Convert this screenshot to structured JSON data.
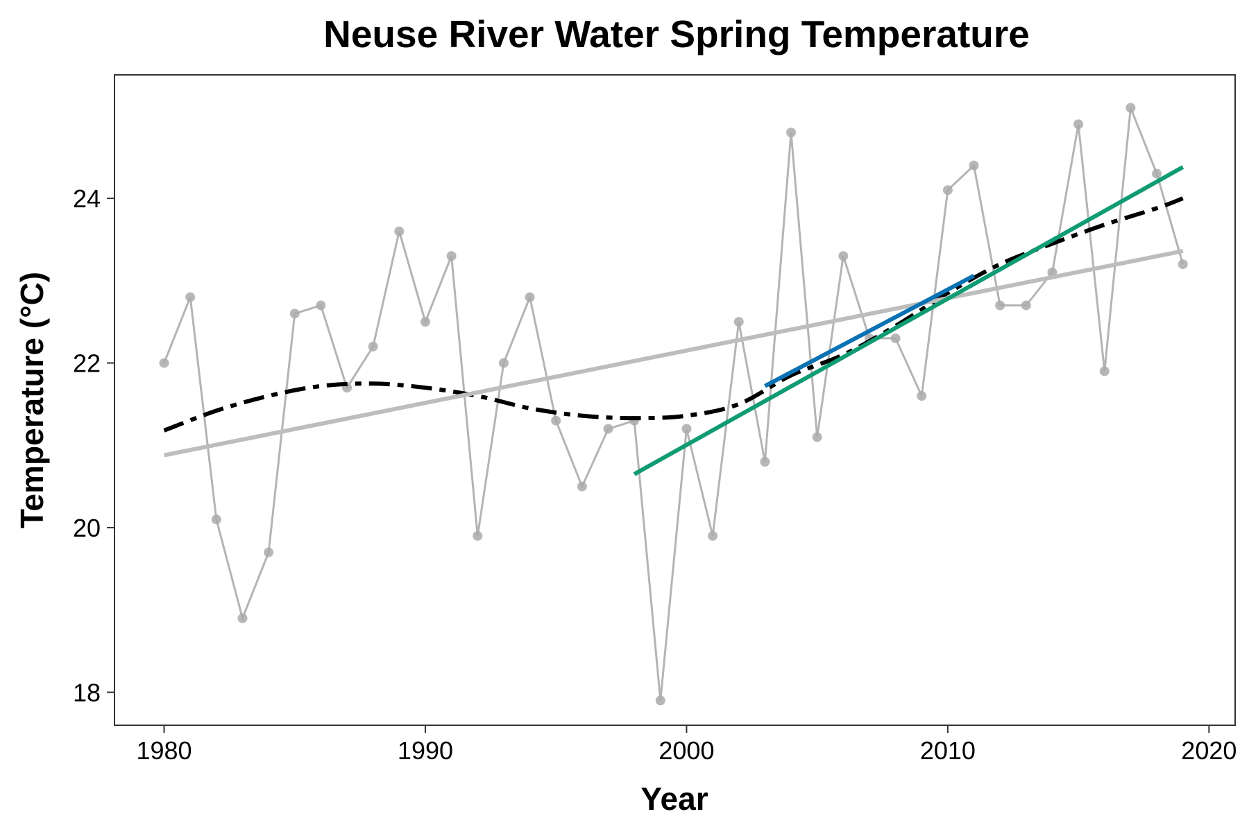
{
  "chart_data": {
    "type": "line",
    "title": "Neuse River Water Spring Temperature",
    "xlabel": "Year",
    "ylabel": "Temperature (°C)",
    "xlim": [
      1978.1,
      2021.0
    ],
    "ylim": [
      17.6,
      25.5
    ],
    "x_ticks": [
      1980,
      1990,
      2000,
      2010,
      2020
    ],
    "y_ticks": [
      18,
      20,
      22,
      24
    ],
    "grid": false,
    "legend": "none",
    "series": [
      {
        "style": "observed",
        "color": "#aaaaaa",
        "points": [
          {
            "x": 1980,
            "y": 22.0
          },
          {
            "x": 1981,
            "y": 22.8
          },
          {
            "x": 1982,
            "y": 20.1
          },
          {
            "x": 1983,
            "y": 18.9
          },
          {
            "x": 1984,
            "y": 19.7
          },
          {
            "x": 1985,
            "y": 22.6
          },
          {
            "x": 1986,
            "y": 22.7
          },
          {
            "x": 1987,
            "y": 21.7
          },
          {
            "x": 1988,
            "y": 22.2
          },
          {
            "x": 1989,
            "y": 23.6
          },
          {
            "x": 1990,
            "y": 22.5
          },
          {
            "x": 1991,
            "y": 23.3
          },
          {
            "x": 1992,
            "y": 19.9
          },
          {
            "x": 1993,
            "y": 22.0
          },
          {
            "x": 1994,
            "y": 22.8
          },
          {
            "x": 1995,
            "y": 21.3
          },
          {
            "x": 1996,
            "y": 20.5
          },
          {
            "x": 1997,
            "y": 21.2
          },
          {
            "x": 1998,
            "y": 21.3
          },
          {
            "x": 1999,
            "y": 17.9
          },
          {
            "x": 2000,
            "y": 21.2
          },
          {
            "x": 2001,
            "y": 19.9
          },
          {
            "x": 2002,
            "y": 22.5
          },
          {
            "x": 2003,
            "y": 20.8
          },
          {
            "x": 2004,
            "y": 24.8
          },
          {
            "x": 2005,
            "y": 21.1
          },
          {
            "x": 2006,
            "y": 23.3
          },
          {
            "x": 2007,
            "y": 22.3
          },
          {
            "x": 2008,
            "y": 22.3
          },
          {
            "x": 2009,
            "y": 21.6
          },
          {
            "x": 2010,
            "y": 24.1
          },
          {
            "x": 2011,
            "y": 24.4
          },
          {
            "x": 2012,
            "y": 22.7
          },
          {
            "x": 2013,
            "y": 22.7
          },
          {
            "x": 2014,
            "y": 23.1
          },
          {
            "x": 2015,
            "y": 24.9
          },
          {
            "x": 2016,
            "y": 21.9
          },
          {
            "x": 2017,
            "y": 25.1
          },
          {
            "x": 2018,
            "y": 24.3
          },
          {
            "x": 2019,
            "y": 23.2
          }
        ]
      },
      {
        "style": "smooth-dashdot",
        "color": "#000000",
        "points": [
          {
            "x": 1980,
            "y": 21.18
          },
          {
            "x": 1982,
            "y": 21.42
          },
          {
            "x": 1984,
            "y": 21.6
          },
          {
            "x": 1986,
            "y": 21.72
          },
          {
            "x": 1988,
            "y": 21.75
          },
          {
            "x": 1990,
            "y": 21.7
          },
          {
            "x": 1992,
            "y": 21.6
          },
          {
            "x": 1994,
            "y": 21.45
          },
          {
            "x": 1996,
            "y": 21.36
          },
          {
            "x": 1998,
            "y": 21.33
          },
          {
            "x": 2000,
            "y": 21.36
          },
          {
            "x": 2002,
            "y": 21.5
          },
          {
            "x": 2004,
            "y": 21.85
          },
          {
            "x": 2006,
            "y": 22.1
          },
          {
            "x": 2008,
            "y": 22.45
          },
          {
            "x": 2010,
            "y": 22.85
          },
          {
            "x": 2012,
            "y": 23.2
          },
          {
            "x": 2014,
            "y": 23.45
          },
          {
            "x": 2016,
            "y": 23.68
          },
          {
            "x": 2018,
            "y": 23.88
          },
          {
            "x": 2019,
            "y": 24.0
          }
        ]
      },
      {
        "style": "trend-full",
        "color": "#bdbdbd",
        "points": [
          {
            "x": 1980,
            "y": 20.88
          },
          {
            "x": 2019,
            "y": 23.36
          }
        ]
      },
      {
        "style": "trend-segment",
        "color": "#0a72b3",
        "points": [
          {
            "x": 2003,
            "y": 21.72
          },
          {
            "x": 2011,
            "y": 23.06
          }
        ]
      },
      {
        "style": "trend-recent",
        "color": "#0f9b73",
        "points": [
          {
            "x": 1998,
            "y": 20.65
          },
          {
            "x": 2019,
            "y": 24.38
          }
        ]
      }
    ]
  }
}
